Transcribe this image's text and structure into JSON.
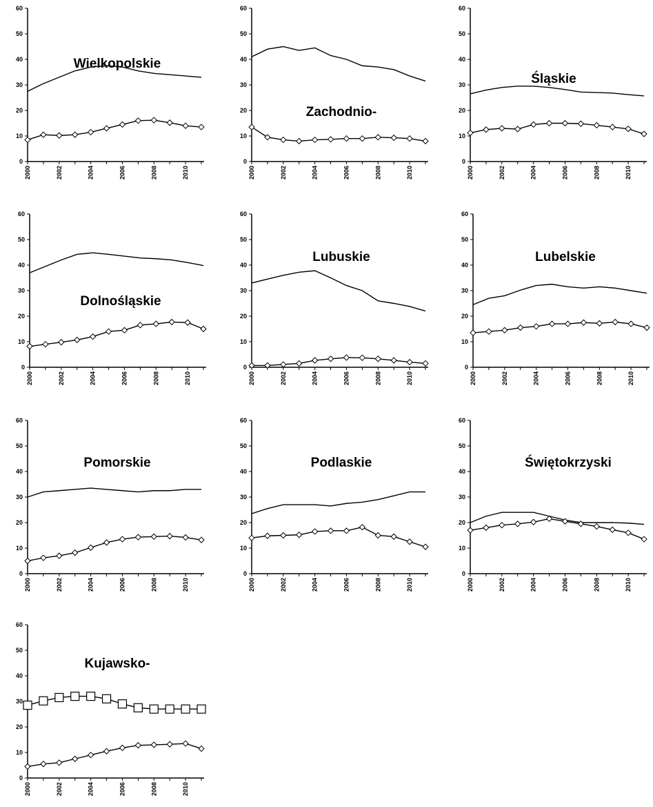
{
  "x": [
    2000,
    2001,
    2002,
    2003,
    2004,
    2005,
    2006,
    2007,
    2008,
    2009,
    2010,
    2011
  ],
  "x_tick_labels": [
    "2000",
    "2002",
    "2004",
    "2006",
    "2008",
    "2010"
  ],
  "y_tick_labels": [
    "0",
    "10",
    "20",
    "30",
    "40",
    "50",
    "60"
  ],
  "chart_data": [
    {
      "type": "line",
      "title": "Wielkopolskie",
      "ylim": [
        0,
        60
      ],
      "series": [
        {
          "marker": "none",
          "values": [
            27.5,
            30.5,
            33,
            35.5,
            37,
            37.5,
            37,
            35.5,
            34.5,
            34,
            33.5,
            33
          ]
        },
        {
          "marker": "diamond",
          "values": [
            8.5,
            10.5,
            10.2,
            10.5,
            11.5,
            13,
            14.5,
            16,
            16.2,
            15.2,
            14,
            13.5
          ]
        }
      ]
    },
    {
      "type": "line",
      "title": "Zachodnio-",
      "ylim": [
        0,
        60
      ],
      "series": [
        {
          "marker": "none",
          "values": [
            41,
            44,
            45,
            43.5,
            44.5,
            41.5,
            40,
            37.5,
            37,
            36,
            33.5,
            31.5
          ]
        },
        {
          "marker": "diamond",
          "values": [
            13.5,
            9.5,
            8.5,
            8,
            8.5,
            8.7,
            9,
            9,
            9.5,
            9.3,
            9,
            8
          ]
        }
      ]
    },
    {
      "type": "line",
      "title": "Śląskie",
      "ylim": [
        0,
        60
      ],
      "series": [
        {
          "marker": "none",
          "values": [
            26.5,
            28,
            29,
            29.5,
            29.5,
            29,
            28.2,
            27.2,
            27,
            26.8,
            26.2,
            25.7
          ]
        },
        {
          "marker": "diamond",
          "values": [
            11.2,
            12.5,
            13,
            12.7,
            14.5,
            15,
            15,
            14.8,
            14.2,
            13.5,
            12.8,
            10.8
          ]
        }
      ]
    },
    {
      "type": "line",
      "title": "Dolnośląskie",
      "ylim": [
        0,
        60
      ],
      "series": [
        {
          "marker": "none",
          "values": [
            37,
            39.5,
            42,
            44.2,
            44.8,
            44.2,
            43.5,
            42.8,
            42.5,
            42,
            41,
            39.8
          ]
        },
        {
          "marker": "diamond",
          "values": [
            8.2,
            9,
            9.8,
            10.7,
            12,
            14,
            14.5,
            16.5,
            17,
            17.7,
            17.5,
            15
          ]
        }
      ]
    },
    {
      "type": "line",
      "title": "Lubuskie",
      "ylim": [
        0,
        60
      ],
      "series": [
        {
          "marker": "none",
          "values": [
            33,
            34.5,
            36,
            37.2,
            37.8,
            35,
            32,
            30,
            26,
            25,
            23.8,
            22
          ]
        },
        {
          "marker": "diamond",
          "values": [
            0.7,
            0.7,
            1.1,
            1.5,
            2.7,
            3.3,
            3.8,
            3.7,
            3.3,
            2.7,
            2,
            1.5
          ]
        }
      ]
    },
    {
      "type": "line",
      "title": "Lubelskie",
      "ylim": [
        0,
        60
      ],
      "series": [
        {
          "marker": "none",
          "values": [
            24.5,
            27,
            28,
            30.2,
            32,
            32.5,
            31.5,
            31,
            31.5,
            31,
            30,
            29
          ]
        },
        {
          "marker": "diamond",
          "values": [
            13.5,
            14,
            14.5,
            15.5,
            16,
            17,
            17,
            17.5,
            17.2,
            17.7,
            17,
            15.5
          ]
        }
      ]
    },
    {
      "type": "line",
      "title": "Pomorskie",
      "ylim": [
        0,
        60
      ],
      "series": [
        {
          "marker": "none",
          "values": [
            30,
            32,
            32.5,
            33,
            33.5,
            33,
            32.5,
            32,
            32.5,
            32.5,
            33,
            33
          ]
        },
        {
          "marker": "diamond",
          "values": [
            5,
            6.2,
            7,
            8.2,
            10.2,
            12.2,
            13.5,
            14.3,
            14.5,
            14.7,
            14.2,
            13.2
          ]
        }
      ]
    },
    {
      "type": "line",
      "title": "Podlaskie",
      "ylim": [
        0,
        60
      ],
      "series": [
        {
          "marker": "none",
          "values": [
            23.5,
            25.5,
            27,
            27,
            27,
            26.5,
            27.5,
            28,
            29,
            30.5,
            32,
            32
          ]
        },
        {
          "marker": "diamond",
          "values": [
            14,
            14.8,
            15,
            15.2,
            16.5,
            16.8,
            16.8,
            18.2,
            15,
            14.5,
            12.5,
            10.5
          ]
        }
      ]
    },
    {
      "type": "line",
      "title": "Świętokrzyski",
      "ylim": [
        0,
        60
      ],
      "series": [
        {
          "marker": "none",
          "values": [
            20,
            22.5,
            24,
            24,
            24,
            22.5,
            21,
            20,
            20,
            20,
            19.8,
            19.3
          ]
        },
        {
          "marker": "diamond",
          "values": [
            17,
            18,
            19,
            19.5,
            20.2,
            21.5,
            20.5,
            19.5,
            18.5,
            17.2,
            16,
            13.5
          ]
        }
      ]
    },
    {
      "type": "line",
      "title": "Kujawsko-",
      "ylim": [
        0,
        60
      ],
      "series": [
        {
          "marker": "square",
          "values": [
            28.5,
            30.2,
            31.5,
            32,
            32,
            31,
            29,
            27.5,
            27,
            27,
            27,
            27
          ]
        },
        {
          "marker": "diamond",
          "values": [
            4.5,
            5.5,
            6,
            7.5,
            9,
            10.5,
            11.8,
            12.8,
            13,
            13.2,
            13.5,
            11.5
          ]
        }
      ]
    }
  ]
}
